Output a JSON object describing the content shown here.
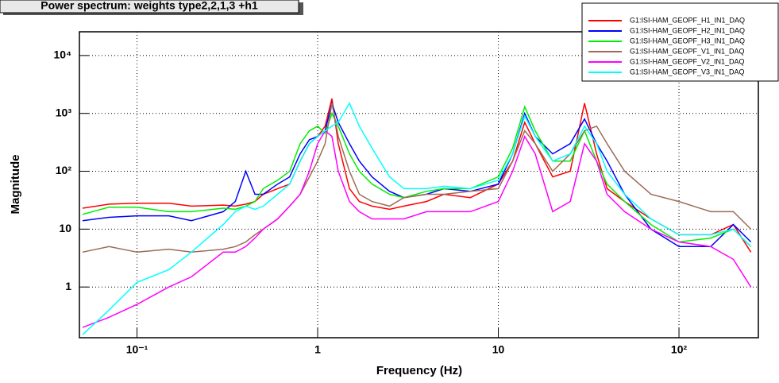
{
  "chart_data": {
    "type": "line",
    "title": "Power spectrum:  weights type2,2,1,3 +h1",
    "xlabel": "Frequency (Hz)",
    "ylabel": "Magnitude",
    "xscale": "log",
    "yscale": "log",
    "grid": true,
    "legend": "upper right",
    "xlim": [
      0.048,
      275
    ],
    "ylim": [
      0.133,
      25700
    ],
    "xticks": [
      {
        "value": 0.1,
        "label": "10⁻¹"
      },
      1,
      10,
      {
        "value": 100,
        "label": "10²"
      }
    ],
    "yticks": [
      1,
      10,
      {
        "value": 100,
        "label": "10²"
      },
      {
        "value": 1000,
        "label": "10³"
      },
      {
        "value": 10000,
        "label": "10⁴"
      }
    ],
    "x": [
      0.05,
      0.07,
      0.1,
      0.15,
      0.2,
      0.3,
      0.35,
      0.4,
      0.45,
      0.5,
      0.6,
      0.7,
      0.8,
      0.9,
      1.0,
      1.1,
      1.2,
      1.3,
      1.5,
      1.7,
      2,
      2.5,
      3,
      4,
      5,
      7,
      10,
      12,
      14,
      16,
      20,
      25,
      30,
      35,
      40,
      50,
      70,
      100,
      150,
      200,
      250
    ],
    "series": [
      {
        "name": "G1:ISI-HAM_GEOPF_H1_IN1_DAQ",
        "color": "#ff0000",
        "values": [
          23,
          27,
          28,
          28,
          25,
          26,
          25,
          27,
          30,
          40,
          50,
          60,
          150,
          300,
          400,
          600,
          1800,
          300,
          50,
          30,
          25,
          22,
          25,
          30,
          40,
          35,
          60,
          150,
          700,
          300,
          80,
          100,
          1500,
          200,
          50,
          30,
          15,
          8,
          8,
          12,
          4
        ]
      },
      {
        "name": "G1:ISI-HAM_GEOPF_H2_IN1_DAQ",
        "color": "#0000ff",
        "values": [
          14,
          16,
          17,
          17,
          14,
          20,
          30,
          100,
          40,
          40,
          60,
          80,
          200,
          350,
          400,
          500,
          1500,
          700,
          300,
          150,
          80,
          45,
          35,
          40,
          50,
          45,
          60,
          200,
          1000,
          400,
          200,
          300,
          800,
          300,
          150,
          40,
          10,
          5,
          5,
          12,
          6
        ]
      },
      {
        "name": "G1:ISI-HAM_GEOPF_H3_IN1_DAQ",
        "color": "#00ee00",
        "values": [
          18,
          24,
          24,
          20,
          20,
          23,
          22,
          25,
          30,
          50,
          70,
          100,
          300,
          500,
          600,
          450,
          1000,
          600,
          200,
          100,
          60,
          40,
          35,
          45,
          50,
          50,
          80,
          250,
          1300,
          500,
          150,
          150,
          500,
          150,
          60,
          30,
          12,
          6,
          7,
          10,
          5
        ]
      },
      {
        "name": "G1:ISI-HAM_GEOPF_V1_IN1_DAQ",
        "color": "#9c6b58",
        "values": [
          4,
          5,
          4,
          4.5,
          4,
          4.5,
          5,
          6,
          8,
          10,
          15,
          25,
          40,
          80,
          150,
          300,
          1500,
          400,
          100,
          40,
          30,
          25,
          35,
          40,
          40,
          45,
          50,
          150,
          500,
          300,
          100,
          200,
          500,
          600,
          300,
          100,
          40,
          30,
          20,
          20,
          10
        ]
      },
      {
        "name": "G1:ISI-HAM_GEOPF_V2_IN1_DAQ",
        "color": "#ff00ff",
        "values": [
          0.2,
          0.3,
          0.5,
          1,
          1.5,
          4,
          4,
          5,
          7,
          10,
          15,
          25,
          40,
          100,
          300,
          500,
          400,
          100,
          30,
          20,
          15,
          15,
          15,
          20,
          20,
          20,
          30,
          100,
          400,
          200,
          20,
          30,
          300,
          150,
          40,
          20,
          10,
          6,
          5,
          3,
          1
        ]
      },
      {
        "name": "G1:ISI-HAM_GEOPF_V3_IN1_DAQ",
        "color": "#00ffff",
        "values": [
          0.15,
          0.4,
          1.2,
          2,
          4,
          12,
          20,
          25,
          22,
          25,
          40,
          60,
          150,
          300,
          400,
          500,
          600,
          700,
          1500,
          600,
          250,
          80,
          50,
          50,
          55,
          50,
          70,
          200,
          900,
          400,
          150,
          200,
          600,
          300,
          100,
          40,
          15,
          8,
          8,
          10,
          5
        ]
      }
    ]
  }
}
